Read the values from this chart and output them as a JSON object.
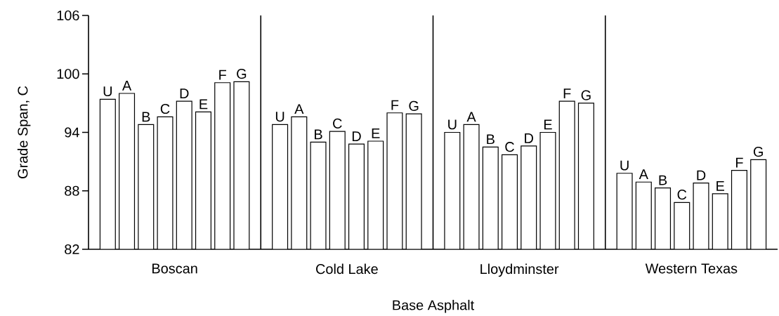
{
  "chart_data": {
    "type": "bar",
    "xlabel": "Base Asphalt",
    "ylabel": "Grade Span, C",
    "categories": [
      "Boscan",
      "Cold Lake",
      "Lloydminster",
      "Western Texas"
    ],
    "series": [
      {
        "name": "U",
        "color": "#ffffff",
        "values": [
          97.4,
          94.8,
          94.0,
          89.8
        ]
      },
      {
        "name": "A",
        "color": "#ffffff",
        "values": [
          98.0,
          95.6,
          94.8,
          88.9
        ]
      },
      {
        "name": "B",
        "color": "#ffffff",
        "values": [
          94.8,
          93.0,
          92.5,
          88.3
        ]
      },
      {
        "name": "C",
        "color": "#ffffff",
        "values": [
          95.6,
          94.1,
          91.7,
          86.8
        ]
      },
      {
        "name": "D",
        "color": "#ffffff",
        "values": [
          97.2,
          92.8,
          92.6,
          88.8
        ]
      },
      {
        "name": "E",
        "color": "#ffffff",
        "values": [
          96.1,
          93.1,
          94.0,
          87.7
        ]
      },
      {
        "name": "F",
        "color": "#ffffff",
        "values": [
          99.1,
          96.0,
          97.2,
          90.1
        ]
      },
      {
        "name": "G",
        "color": "#ffffff",
        "values": [
          99.2,
          95.9,
          97.0,
          91.2
        ]
      }
    ],
    "ylim": [
      82,
      106
    ],
    "yticks": [
      82,
      88,
      94,
      100,
      106
    ],
    "grid": "x"
  }
}
